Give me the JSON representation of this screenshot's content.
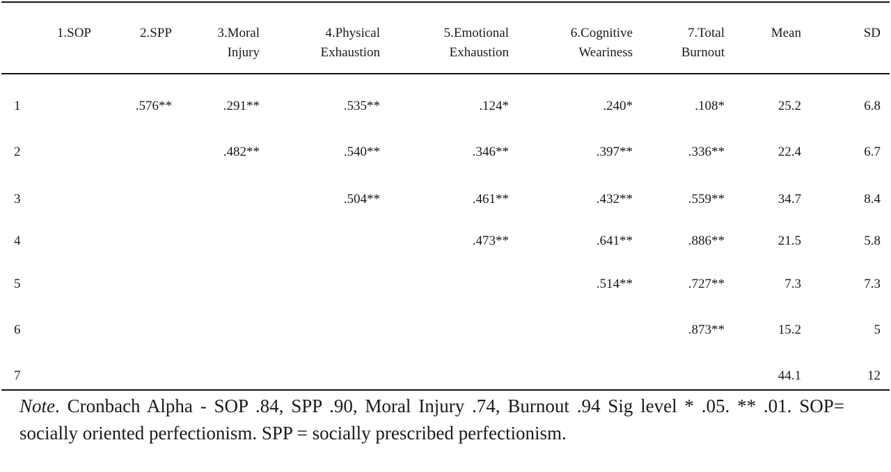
{
  "headers": {
    "c1": [
      "1.SOP"
    ],
    "c2": [
      "2.SPP"
    ],
    "c3": [
      "3.Moral",
      "Injury"
    ],
    "c4": [
      "4.Physical",
      "Exhaustion"
    ],
    "c5": [
      "5.Emotional",
      "Exhaustion"
    ],
    "c6": [
      "6.Cognitive",
      "Weariness"
    ],
    "c7": [
      "7.Total",
      "Burnout"
    ],
    "mean": [
      "Mean"
    ],
    "sd": [
      "SD"
    ]
  },
  "rows": [
    {
      "label": "1",
      "c2": ".576**",
      "c3": ".291**",
      "c4": ".535**",
      "c5": ".124*",
      "c6": ".240*",
      "c7": ".108*",
      "mean": "25.2",
      "sd": "6.8"
    },
    {
      "label": "2",
      "c3": ".482**",
      "c4": ".540**",
      "c5": ".346**",
      "c6": ".397**",
      "c7": ".336**",
      "mean": "22.4",
      "sd": "6.7"
    },
    {
      "label": "3",
      "c4": ".504**",
      "c5": ".461**",
      "c6": ".432**",
      "c7": ".559**",
      "mean": "34.7",
      "sd": "8.4"
    },
    {
      "label": "4",
      "c5": ".473**",
      "c6": ".641**",
      "c7": ".886**",
      "mean": "21.5",
      "sd": "5.8"
    },
    {
      "label": "5",
      "c6": ".514**",
      "c7": ".727**",
      "mean": "7.3",
      "sd": "7.3"
    },
    {
      "label": "6",
      "c7": ".873**",
      "mean": "15.2",
      "sd": "5"
    },
    {
      "label": "7",
      "mean": "44.1",
      "sd": "12"
    }
  ],
  "note": {
    "label": "Note",
    "text": ". Cronbach Alpha - SOP .84, SPP .90, Moral Injury .74, Burnout .94 Sig level * .05. ** .01. SOP= socially oriented perfectionism. SPP = socially prescribed perfectionism."
  }
}
